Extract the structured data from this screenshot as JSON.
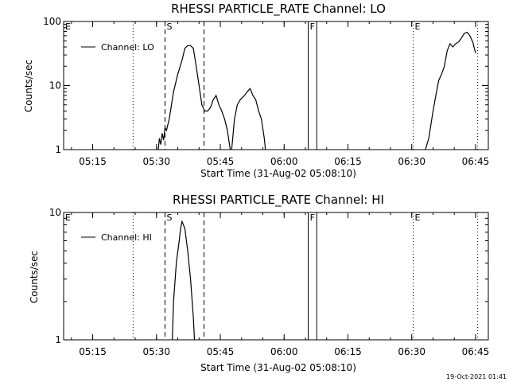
{
  "stamp": "19-Oct-2021 01:41",
  "chart_data": [
    {
      "type": "line",
      "title": "RHESSI PARTICLE_RATE Channel: LO",
      "xlabel": "Start Time (31-Aug-02 05:08:10)",
      "ylabel": "Counts/sec",
      "yscale": "log",
      "ylim": [
        1,
        100
      ],
      "xlim": [
        "05:08:10",
        "06:48:00"
      ],
      "xticks": [
        "05:15",
        "05:30",
        "05:45",
        "06:00",
        "06:15",
        "06:30",
        "06:45"
      ],
      "yticks": [
        "1",
        "10",
        "100"
      ],
      "legend": "upper-left",
      "markers": [
        {
          "label": "E",
          "time": "05:08:10",
          "style": "none"
        },
        {
          "label": "",
          "time": "05:24:30",
          "style": "dotted"
        },
        {
          "label": "S",
          "time": "05:32:00",
          "style": "dashed"
        },
        {
          "label": "",
          "time": "05:41:10",
          "style": "dashed"
        },
        {
          "label": "F",
          "time": "06:05:40",
          "style": "solid"
        },
        {
          "label": "",
          "time": "06:07:40",
          "style": "solid"
        },
        {
          "label": "E",
          "time": "06:30:20",
          "style": "dotted"
        },
        {
          "label": "",
          "time": "06:45:30",
          "style": "dotted"
        }
      ],
      "series": [
        {
          "name": "Channel: LO",
          "segments": [
            [
              [
                "05:30:20",
                0.9
              ],
              [
                "05:30:40",
                1.5
              ],
              [
                "05:31:00",
                1.2
              ],
              [
                "05:31:20",
                1.8
              ],
              [
                "05:31:40",
                1.4
              ],
              [
                "05:32:00",
                2.2
              ],
              [
                "05:32:20",
                2.0
              ],
              [
                "05:33:00",
                3.0
              ],
              [
                "05:34:00",
                8
              ],
              [
                "05:35:00",
                15
              ],
              [
                "05:36:00",
                25
              ],
              [
                "05:36:40",
                38
              ],
              [
                "05:37:20",
                42
              ],
              [
                "05:38:00",
                42
              ],
              [
                "05:38:40",
                38
              ],
              [
                "05:39:20",
                20
              ],
              [
                "05:40:00",
                10
              ],
              [
                "05:40:40",
                5
              ],
              [
                "05:41:20",
                4
              ],
              [
                "05:42:00",
                4
              ],
              [
                "05:42:40",
                4.5
              ],
              [
                "05:43:20",
                6
              ],
              [
                "05:44:00",
                7
              ],
              [
                "05:44:40",
                5
              ],
              [
                "05:45:20",
                4
              ],
              [
                "05:46:00",
                3
              ],
              [
                "05:46:40",
                2
              ],
              [
                "05:47:20",
                1
              ],
              [
                "05:47:40",
                0.9
              ]
            ],
            [
              [
                "05:47:40",
                1.0
              ],
              [
                "05:48:20",
                3
              ],
              [
                "05:49:00",
                5
              ],
              [
                "05:49:40",
                6
              ],
              [
                "05:50:40",
                7
              ],
              [
                "05:51:20",
                8
              ],
              [
                "05:52:00",
                9
              ],
              [
                "05:52:40",
                7
              ],
              [
                "05:53:20",
                6
              ],
              [
                "05:54:00",
                4
              ],
              [
                "05:54:40",
                3
              ],
              [
                "05:55:20",
                1.5
              ],
              [
                "05:55:40",
                0.9
              ]
            ],
            [
              [
                "06:33:00",
                0.9
              ],
              [
                "06:34:00",
                1.5
              ],
              [
                "06:35:00",
                4
              ],
              [
                "06:35:40",
                7
              ],
              [
                "06:36:20",
                12
              ],
              [
                "06:37:00",
                15
              ],
              [
                "06:37:40",
                20
              ],
              [
                "06:38:20",
                35
              ],
              [
                "06:39:00",
                45
              ],
              [
                "06:39:40",
                40
              ],
              [
                "06:40:20",
                45
              ],
              [
                "06:41:00",
                48
              ],
              [
                "06:41:40",
                55
              ],
              [
                "06:42:20",
                65
              ],
              [
                "06:43:00",
                68
              ],
              [
                "06:43:40",
                60
              ],
              [
                "06:44:20",
                48
              ],
              [
                "06:45:00",
                32
              ]
            ]
          ]
        }
      ]
    },
    {
      "type": "line",
      "title": "RHESSI PARTICLE_RATE Channel: HI",
      "xlabel": "Start Time (31-Aug-02 05:08:10)",
      "ylabel": "Counts/sec",
      "yscale": "log",
      "ylim": [
        1,
        10
      ],
      "xlim": [
        "05:08:10",
        "06:48:00"
      ],
      "xticks": [
        "05:15",
        "05:30",
        "05:45",
        "06:00",
        "06:15",
        "06:30",
        "06:45"
      ],
      "yticks": [
        "1",
        "10"
      ],
      "legend": "upper-left",
      "markers": [
        {
          "label": "E",
          "time": "05:08:10",
          "style": "none"
        },
        {
          "label": "",
          "time": "05:24:30",
          "style": "dotted"
        },
        {
          "label": "S",
          "time": "05:32:00",
          "style": "dashed"
        },
        {
          "label": "",
          "time": "05:41:10",
          "style": "dashed"
        },
        {
          "label": "F",
          "time": "06:05:40",
          "style": "solid"
        },
        {
          "label": "",
          "time": "06:07:40",
          "style": "solid"
        },
        {
          "label": "E",
          "time": "06:30:20",
          "style": "dotted"
        },
        {
          "label": "",
          "time": "06:45:30",
          "style": "dotted"
        }
      ],
      "series": [
        {
          "name": "Channel: HI",
          "segments": [
            [
              [
                "05:33:40",
                0.9
              ],
              [
                "05:34:00",
                2
              ],
              [
                "05:34:40",
                4
              ],
              [
                "05:35:20",
                6
              ],
              [
                "05:35:40",
                7.5
              ],
              [
                "05:36:00",
                8.5
              ],
              [
                "05:36:40",
                7.5
              ],
              [
                "05:37:20",
                5
              ],
              [
                "05:38:00",
                3
              ],
              [
                "05:38:40",
                1.5
              ],
              [
                "05:39:00",
                0.9
              ]
            ]
          ]
        }
      ]
    }
  ]
}
